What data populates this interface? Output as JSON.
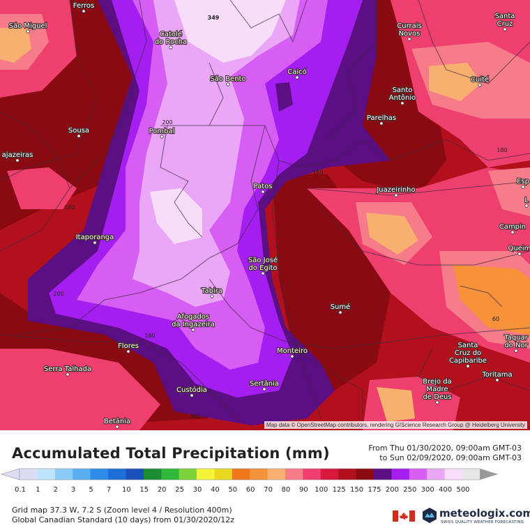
{
  "map": {
    "attribution": "Map data © OpenStreetMap contributors, rendering GIScience Research Group @ Heidelberg University",
    "cities": [
      {
        "name": "Ferros",
        "lines": [
          "Ferros"
        ]
      },
      {
        "name": "São Miguel",
        "lines": [
          "São Miguel"
        ]
      },
      {
        "name": "Catolé do Rocha",
        "lines": [
          "Catolé",
          "do Rocha"
        ]
      },
      {
        "name": "São Bento",
        "lines": [
          "São Bento"
        ]
      },
      {
        "name": "Caicó",
        "lines": [
          "Caicó"
        ]
      },
      {
        "name": "Currais Novos",
        "lines": [
          "Currais",
          "Novos"
        ]
      },
      {
        "name": "Santa Cruz",
        "lines": [
          "Santa",
          "Cruz"
        ]
      },
      {
        "name": "Cuité",
        "lines": [
          "Cuité"
        ]
      },
      {
        "name": "Santo Antônio",
        "lines": [
          "Santo",
          "Antônio"
        ]
      },
      {
        "name": "Parelhas",
        "lines": [
          "Parelhas"
        ]
      },
      {
        "name": "Sousa",
        "lines": [
          "Sousa"
        ]
      },
      {
        "name": "Pombal",
        "lines": [
          "Pombal"
        ]
      },
      {
        "name": "Cajazeiras",
        "lines": [
          "ajazeiras"
        ]
      },
      {
        "name": "Patos",
        "lines": [
          "Patos"
        ]
      },
      {
        "name": "Juazeirinho",
        "lines": [
          "Juazeirinho"
        ]
      },
      {
        "name": "Esp",
        "lines": [
          "Esp"
        ]
      },
      {
        "name": "L",
        "lines": [
          "L"
        ]
      },
      {
        "name": "Campina",
        "lines": [
          "Campin"
        ]
      },
      {
        "name": "Queim",
        "lines": [
          "Queim"
        ]
      },
      {
        "name": "Itaporanga",
        "lines": [
          "Itaporanga"
        ]
      },
      {
        "name": "São José do Egito",
        "lines": [
          "São José",
          "do Egito"
        ]
      },
      {
        "name": "Tabira",
        "lines": [
          "Tabira"
        ]
      },
      {
        "name": "Sumé",
        "lines": [
          "Sumé"
        ]
      },
      {
        "name": "Afogados da Ingazeira",
        "lines": [
          "Afogados",
          "da Ingazeira"
        ]
      },
      {
        "name": "Flores",
        "lines": [
          "Flores"
        ]
      },
      {
        "name": "Monteiro",
        "lines": [
          "Monteiro"
        ]
      },
      {
        "name": "Santa Cruz do Capibaribe",
        "lines": [
          "Santa",
          "Cruz do",
          "Capibaribe"
        ]
      },
      {
        "name": "Taquar do Nor",
        "lines": [
          "Taquar",
          "do Nor"
        ]
      },
      {
        "name": "Toritama",
        "lines": [
          "Toritama"
        ]
      },
      {
        "name": "Serra Talhada",
        "lines": [
          "Serra Talhada"
        ]
      },
      {
        "name": "Custódia",
        "lines": [
          "Custódia"
        ]
      },
      {
        "name": "Sertânia",
        "lines": [
          "Sertânia"
        ]
      },
      {
        "name": "Brejo da Madre de Deus",
        "lines": [
          "Brejo da",
          "Madre",
          "de Deus"
        ]
      },
      {
        "name": "Betânia",
        "lines": [
          "Betânia"
        ]
      }
    ],
    "contour_labels": [
      "200",
      "200",
      "200",
      "180",
      "180",
      "160",
      "180",
      "60",
      "349"
    ]
  },
  "legend": {
    "title": "Accumulated Total Precipitation (mm)",
    "period_line1": "From Thu 01/30/2020, 09:00am GMT-03",
    "period_line2": "to Sun 02/09/2020, 09:00am GMT-03",
    "values": [
      "0.1",
      "1",
      "2",
      "3",
      "5",
      "7",
      "10",
      "15",
      "20",
      "25",
      "30",
      "40",
      "50",
      "60",
      "70",
      "80",
      "90",
      "100",
      "125",
      "150",
      "175",
      "200",
      "250",
      "300",
      "400",
      "500"
    ],
    "colors": [
      "#dcdcf5",
      "#bfe4fb",
      "#8ccbf5",
      "#5aaef0",
      "#2e8ce8",
      "#1f6fd8",
      "#1a50b8",
      "#1e8c32",
      "#2fb83a",
      "#7bd43a",
      "#f4f43a",
      "#e8d820",
      "#f0781e",
      "#f5923a",
      "#f8b070",
      "#f77c8a",
      "#ef3f6e",
      "#d6183c",
      "#b3101e",
      "#8a0a12",
      "#5b0f82",
      "#a51ef0",
      "#d65ef5",
      "#eaa6f7",
      "#f7ddfa",
      "#e6e6e6"
    ]
  },
  "info": {
    "line1": "Grid map 37.3 W, 7.2 S (Zoom level 4 / Resolution 400m)",
    "line2": "Global Canadian Standard (10 days) from 01/30/2020/12z"
  },
  "brand": {
    "name": "meteologix.com",
    "tagline": "SWISS QUALITY WEATHER FORECASTING"
  }
}
